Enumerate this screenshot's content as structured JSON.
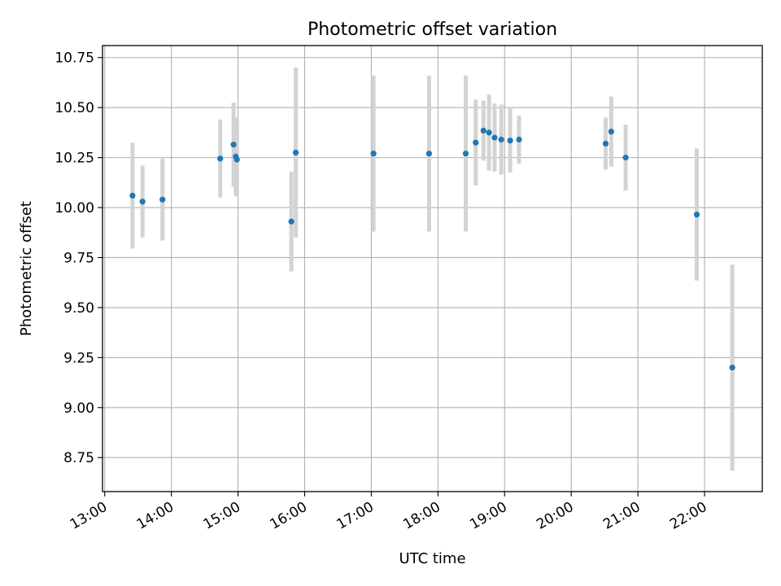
{
  "chart_data": {
    "type": "scatter",
    "title": "Photometric offset variation",
    "xlabel": "UTC time",
    "ylabel": "Photometric offset",
    "grid": true,
    "xlim": [
      "12:58",
      "22:52"
    ],
    "ylim": [
      8.58,
      10.81
    ],
    "x_tick_labels": [
      "13:00",
      "14:00",
      "15:00",
      "16:00",
      "17:00",
      "18:00",
      "19:00",
      "20:00",
      "21:00",
      "22:00"
    ],
    "y_tick_values": [
      8.75,
      9.0,
      9.25,
      9.5,
      9.75,
      10.0,
      10.25,
      10.5,
      10.75
    ],
    "y_tick_labels": [
      "8.75",
      "9.00",
      "9.25",
      "9.50",
      "9.75",
      "10.00",
      "10.25",
      "10.50",
      "10.75"
    ],
    "point_color": "#1f77b4",
    "errorbar_color": "#d3d3d3",
    "points": [
      {
        "time": "13:25",
        "y": 10.06,
        "yerr": 0.265
      },
      {
        "time": "13:34",
        "y": 10.03,
        "yerr": 0.18
      },
      {
        "time": "13:52",
        "y": 10.04,
        "yerr": 0.205
      },
      {
        "time": "14:44",
        "y": 10.245,
        "yerr": 0.195
      },
      {
        "time": "14:56",
        "y": 10.315,
        "yerr": 0.21
      },
      {
        "time": "14:58",
        "y": 10.255,
        "yerr": 0.195
      },
      {
        "time": "14:59",
        "y": 10.24,
        "yerr": 0.185
      },
      {
        "time": "15:48",
        "y": 9.93,
        "yerr": 0.25
      },
      {
        "time": "15:52",
        "y": 10.275,
        "yerr": 0.425
      },
      {
        "time": "17:02",
        "y": 10.27,
        "yerr": 0.39
      },
      {
        "time": "17:52",
        "y": 10.27,
        "yerr": 0.39
      },
      {
        "time": "18:25",
        "y": 10.27,
        "yerr": 0.39
      },
      {
        "time": "18:34",
        "y": 10.325,
        "yerr": 0.215
      },
      {
        "time": "18:41",
        "y": 10.385,
        "yerr": 0.15
      },
      {
        "time": "18:46",
        "y": 10.375,
        "yerr": 0.19
      },
      {
        "time": "18:51",
        "y": 10.35,
        "yerr": 0.17
      },
      {
        "time": "18:57",
        "y": 10.34,
        "yerr": 0.175
      },
      {
        "time": "19:05",
        "y": 10.335,
        "yerr": 0.16
      },
      {
        "time": "19:13",
        "y": 10.34,
        "yerr": 0.12
      },
      {
        "time": "20:31",
        "y": 10.32,
        "yerr": 0.13
      },
      {
        "time": "20:36",
        "y": 10.38,
        "yerr": 0.175
      },
      {
        "time": "20:49",
        "y": 10.25,
        "yerr": 0.165
      },
      {
        "time": "21:53",
        "y": 9.965,
        "yerr": 0.33
      },
      {
        "time": "22:25",
        "y": 9.2,
        "yerr": 0.515
      }
    ]
  }
}
